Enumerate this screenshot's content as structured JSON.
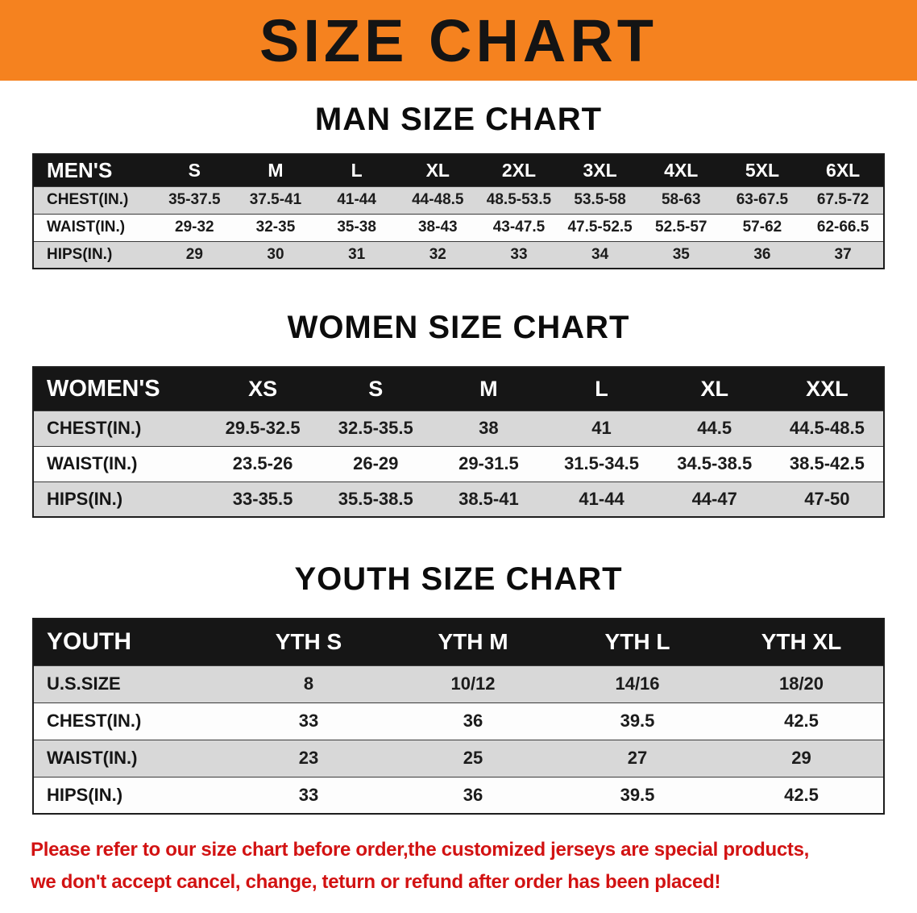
{
  "banner": {
    "title": "SIZE CHART",
    "bg_color": "#f5821f",
    "text_color": "#141414"
  },
  "chart_data": [
    {
      "type": "table",
      "section_heading": "MAN SIZE CHART",
      "columns": [
        "MEN'S",
        "S",
        "M",
        "L",
        "XL",
        "2XL",
        "3XL",
        "4XL",
        "5XL",
        "6XL"
      ],
      "rows": [
        [
          "CHEST(IN.)",
          "35-37.5",
          "37.5-41",
          "41-44",
          "44-48.5",
          "48.5-53.5",
          "53.5-58",
          "58-63",
          "63-67.5",
          "67.5-72"
        ],
        [
          "WAIST(IN.)",
          "29-32",
          "32-35",
          "35-38",
          "38-43",
          "43-47.5",
          "47.5-52.5",
          "52.5-57",
          "57-62",
          "62-66.5"
        ],
        [
          "HIPS(IN.)",
          "29",
          "30",
          "31",
          "32",
          "33",
          "34",
          "35",
          "36",
          "37"
        ]
      ]
    },
    {
      "type": "table",
      "section_heading": "WOMEN SIZE CHART",
      "columns": [
        "WOMEN'S",
        "XS",
        "S",
        "M",
        "L",
        "XL",
        "XXL"
      ],
      "rows": [
        [
          "CHEST(IN.)",
          "29.5-32.5",
          "32.5-35.5",
          "38",
          "41",
          "44.5",
          "44.5-48.5"
        ],
        [
          "WAIST(IN.)",
          "23.5-26",
          "26-29",
          "29-31.5",
          "31.5-34.5",
          "34.5-38.5",
          "38.5-42.5"
        ],
        [
          "HIPS(IN.)",
          "33-35.5",
          "35.5-38.5",
          "38.5-41",
          "41-44",
          "44-47",
          "47-50"
        ]
      ]
    },
    {
      "type": "table",
      "section_heading": "YOUTH SIZE CHART",
      "columns": [
        "YOUTH",
        "YTH S",
        "YTH M",
        "YTH L",
        "YTH XL"
      ],
      "rows": [
        [
          "U.S.SIZE",
          "8",
          "10/12",
          "14/16",
          "18/20"
        ],
        [
          "CHEST(IN.)",
          "33",
          "36",
          "39.5",
          "42.5"
        ],
        [
          "WAIST(IN.)",
          "23",
          "25",
          "27",
          "29"
        ],
        [
          "HIPS(IN.)",
          "33",
          "36",
          "39.5",
          "42.5"
        ]
      ]
    }
  ],
  "disclaimer": {
    "line1": "Please refer to our size chart before order,the customized jerseys are special products,",
    "line2": "we don't accept cancel, change, teturn or refund after order has been placed!",
    "text_color": "#d21212"
  }
}
